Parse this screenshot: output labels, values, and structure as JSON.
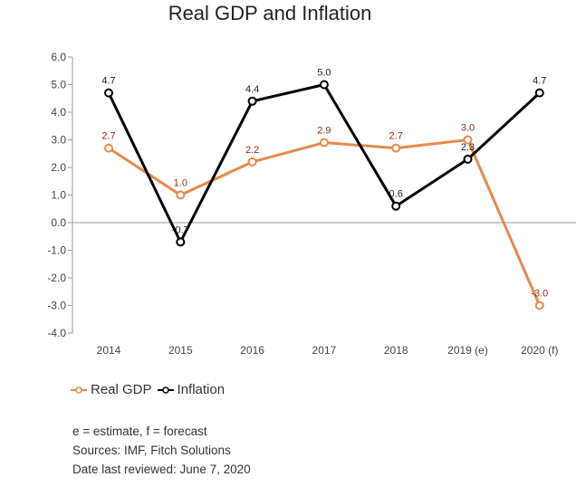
{
  "title": "Real GDP and Inflation",
  "chart_data": {
    "type": "line",
    "title": "Real GDP and Inflation",
    "categories": [
      "2014",
      "2015",
      "2016",
      "2017",
      "2018",
      "2019 (e)",
      "2020 (f)"
    ],
    "ylim": [
      -4.0,
      6.0
    ],
    "yticks": [
      "6.0",
      "5.0",
      "4.0",
      "3.0",
      "2.0",
      "1.0",
      "0.0",
      "-1.0",
      "-2.0",
      "-3.0",
      "-4.0"
    ],
    "grid": false,
    "legend": "bottom-left",
    "series": [
      {
        "name": "Real GDP",
        "color": "#e8894a",
        "label_color": "#8b2e1a",
        "values": [
          2.7,
          1.0,
          2.2,
          2.9,
          2.7,
          3.0,
          -3.0
        ],
        "labels": [
          "2.7",
          "1.0",
          "2.2",
          "2.9",
          "2.7",
          "3.0",
          "-3.0"
        ]
      },
      {
        "name": "Inflation",
        "color": "#000000",
        "label_color": "#222222",
        "values": [
          4.7,
          -0.7,
          4.4,
          5.0,
          0.6,
          2.3,
          4.7
        ],
        "labels": [
          "4.7",
          "-0.7",
          "4.4",
          "5.0",
          "0.6",
          "2.3",
          "4.7"
        ]
      }
    ]
  },
  "legend": {
    "gdp_label": "Real GDP",
    "inflation_label": "Inflation"
  },
  "notes": {
    "line1": "e = estimate, f = forecast",
    "line2": "Sources: IMF, Fitch Solutions",
    "line3": "Date last reviewed: June 7, 2020"
  }
}
